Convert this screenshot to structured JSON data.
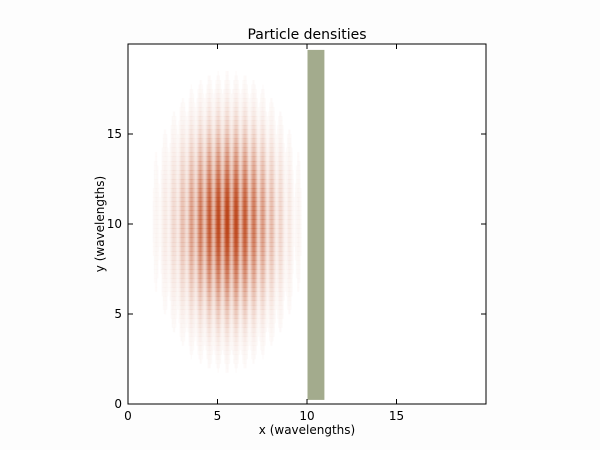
{
  "chart_data": {
    "type": "heatmap",
    "title": "Particle densities",
    "xlabel": "x (wavelengths)",
    "ylabel": "y (wavelengths)",
    "xlim": [
      0,
      20
    ],
    "ylim": [
      0,
      20
    ],
    "xticks": [
      "0",
      "5",
      "10",
      "15"
    ],
    "yticks": [
      "0",
      "5",
      "10",
      "15"
    ],
    "grid": false,
    "density_field": {
      "shape": "gaussian wave packet with stripe interference",
      "center_x": 5.5,
      "center_y": 10,
      "sigma_x": 1.6,
      "sigma_y": 3.0,
      "stripe_period": 0.5,
      "color": "#b83a0c"
    },
    "barrier": {
      "x_range": [
        10,
        11
      ],
      "y_range": [
        0.2,
        19.7
      ],
      "color": "#a3ab8d"
    }
  }
}
